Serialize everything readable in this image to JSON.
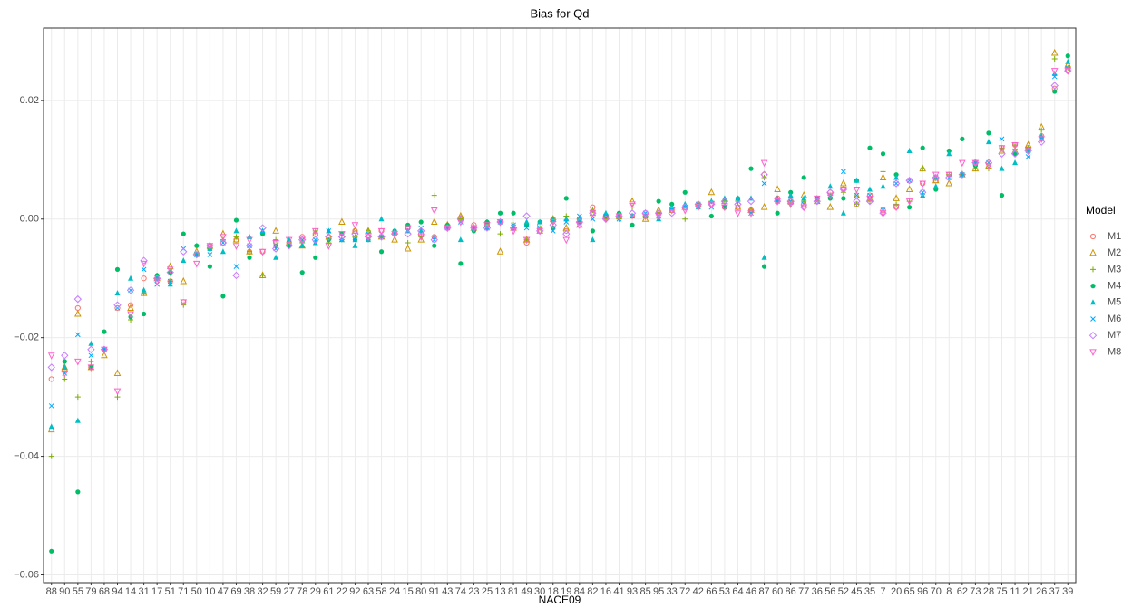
{
  "chart_data": {
    "type": "scatter",
    "title": "Bias for Qd",
    "x_label": "NACE09",
    "legend_title": "Model",
    "legend_position": "right",
    "grid": true,
    "categories": [
      "88",
      "90",
      "55",
      "79",
      "68",
      "94",
      "14",
      "31",
      "17",
      "51",
      "71",
      "50",
      "10",
      "47",
      "69",
      "38",
      "32",
      "59",
      "27",
      "78",
      "29",
      "61",
      "22",
      "92",
      "63",
      "58",
      "24",
      "15",
      "80",
      "91",
      "43",
      "74",
      "23",
      "25",
      "13",
      "81",
      "49",
      "30",
      "18",
      "19",
      "84",
      "82",
      "16",
      "41",
      "93",
      "85",
      "95",
      "33",
      "72",
      "42",
      "66",
      "53",
      "64",
      "46",
      "87",
      "60",
      "86",
      "77",
      "36",
      "56",
      "52",
      "45",
      "35",
      "7",
      "20",
      "65",
      "96",
      "70",
      "8",
      "62",
      "73",
      "28",
      "75",
      "11",
      "21",
      "26",
      "37",
      "39"
    ],
    "ylim": [
      -0.0613,
      0.0322
    ],
    "yticks": [
      {
        "value": -0.06,
        "label": "−0.06"
      },
      {
        "value": -0.04,
        "label": "−0.04"
      },
      {
        "value": -0.02,
        "label": "−0.02"
      },
      {
        "value": 0,
        "label": "0.00"
      },
      {
        "value": 0.02,
        "label": "0.02"
      }
    ],
    "series": [
      {
        "name": "M1",
        "color": "#F8766D",
        "shape": "circle-open",
        "values": [
          -0.027,
          -0.0255,
          -0.015,
          -0.025,
          -0.022,
          -0.015,
          -0.0145,
          -0.01,
          -0.01,
          -0.0105,
          -0.014,
          -0.006,
          -0.005,
          -0.004,
          -0.0035,
          -0.0055,
          -0.0055,
          -0.004,
          -0.004,
          -0.003,
          -0.0025,
          -0.003,
          -0.003,
          -0.002,
          -0.003,
          -0.002,
          -0.0025,
          -0.0015,
          -0.0025,
          -0.003,
          -0.0015,
          0.0002,
          -0.001,
          -0.001,
          -0.0005,
          -0.0015,
          -0.004,
          -0.001,
          0,
          -0.002,
          0,
          0.002,
          0.0005,
          0.0005,
          0.0005,
          0.001,
          0.001,
          0.0015,
          0.002,
          0.0025,
          0.0025,
          0.002,
          0.002,
          0.0015,
          0.0075,
          0.0035,
          0.003,
          0.0025,
          0.0035,
          0.0045,
          0.005,
          0.0025,
          0.004,
          0.0015,
          0.002,
          0.0065,
          0.006,
          0.0065,
          0.0075,
          0.0075,
          0.0095,
          0.0095,
          0.012,
          0.0125,
          0.012,
          0.014,
          0.022,
          0.025
        ]
      },
      {
        "name": "M2",
        "color": "#CD9600",
        "shape": "triangle-open",
        "values": [
          -0.0355,
          -0.025,
          -0.016,
          -0.025,
          -0.023,
          -0.026,
          -0.015,
          -0.0125,
          -0.01,
          -0.008,
          -0.0105,
          -0.0055,
          -0.0045,
          -0.0025,
          -0.0035,
          -0.0055,
          -0.0095,
          -0.002,
          -0.004,
          -0.0045,
          -0.0025,
          -0.003,
          -0.0005,
          -0.002,
          -0.002,
          -0.003,
          -0.0035,
          -0.005,
          -0.0035,
          -0.0005,
          -0.001,
          0.0005,
          -0.0015,
          -0.001,
          -0.0055,
          -0.0015,
          -0.0035,
          -0.002,
          0,
          -0.0015,
          -0.001,
          0.001,
          0.0005,
          0.0005,
          0.003,
          0,
          0.0015,
          0.0015,
          0.002,
          0.0025,
          0.0045,
          0.003,
          0.002,
          0.0015,
          0.002,
          0.005,
          0.003,
          0.004,
          0.003,
          0.002,
          0.006,
          0.004,
          0.0035,
          0.007,
          0.0035,
          0.005,
          0.0085,
          0.0065,
          0.006,
          0.0075,
          0.0085,
          0.009,
          0.0115,
          0.0115,
          0.0125,
          0.0155,
          0.028,
          0.026
        ]
      },
      {
        "name": "M3",
        "color": "#7CAE00",
        "shape": "plus",
        "values": [
          -0.04,
          -0.027,
          -0.03,
          -0.024,
          -0.022,
          -0.03,
          -0.017,
          -0.0125,
          -0.0095,
          -0.0105,
          -0.0145,
          -0.0045,
          -0.005,
          -0.0035,
          -0.003,
          -0.0055,
          -0.0095,
          -0.0035,
          -0.0045,
          -0.004,
          -0.002,
          -0.004,
          -0.0035,
          -0.003,
          -0.002,
          -0.003,
          -0.0025,
          -0.004,
          -0.003,
          0.004,
          -0.001,
          0,
          -0.0015,
          -0.0005,
          -0.0025,
          -0.001,
          -0.0035,
          -0.0015,
          -0.0005,
          0.0005,
          0,
          0.0015,
          0,
          0,
          0.002,
          0.0005,
          0.001,
          0.002,
          0,
          0.002,
          0.003,
          0.003,
          0.003,
          0.0015,
          0.007,
          0.003,
          0.0025,
          0.003,
          0.0035,
          0.004,
          0.0045,
          0.0025,
          0.003,
          0.008,
          0.0025,
          0.003,
          0.0085,
          0.007,
          0.0075,
          0.0075,
          0.0085,
          0.0085,
          0.012,
          0.0125,
          0.012,
          0.015,
          0.027,
          0.0255
        ]
      },
      {
        "name": "M4",
        "color": "#00BE67",
        "shape": "circle",
        "values": [
          -0.056,
          -0.024,
          -0.046,
          -0.025,
          -0.019,
          -0.0085,
          -0.0165,
          -0.016,
          -0.0095,
          -0.009,
          -0.0025,
          -0.0045,
          -0.008,
          -0.013,
          -0.0002,
          -0.0065,
          -0.0025,
          -0.0045,
          -0.0045,
          -0.009,
          -0.0065,
          -0.0035,
          -0.0025,
          -0.0035,
          -0.0035,
          -0.0055,
          -0.002,
          -0.001,
          -0.0005,
          -0.0045,
          -0.001,
          -0.0075,
          -0.002,
          -0.0005,
          0.001,
          0.001,
          -0.001,
          -0.0005,
          -0.0015,
          0.0035,
          -0.0005,
          -0.002,
          0.0005,
          0.001,
          -0.001,
          0.0005,
          0.003,
          0.0025,
          0.0045,
          0.002,
          0.0005,
          0.002,
          0.0035,
          0.0085,
          -0.008,
          0.001,
          0.0045,
          0.007,
          0.0035,
          0.0035,
          0.0035,
          0.0065,
          0.012,
          0.011,
          0.0075,
          0.002,
          0.012,
          0.005,
          0.0115,
          0.0135,
          0.009,
          0.0145,
          0.004,
          0.011,
          0.0115,
          0.0135,
          0.0215,
          0.0275
        ]
      },
      {
        "name": "M5",
        "color": "#00BFC4",
        "shape": "triangle",
        "values": [
          -0.035,
          -0.025,
          -0.034,
          -0.021,
          -0.022,
          -0.0125,
          -0.01,
          -0.012,
          -0.01,
          -0.011,
          -0.007,
          -0.006,
          -0.005,
          -0.0055,
          -0.002,
          -0.003,
          -0.002,
          -0.0065,
          -0.0035,
          -0.0045,
          -0.004,
          -0.002,
          -0.0035,
          -0.0045,
          -0.0035,
          0,
          -0.002,
          -0.002,
          -0.002,
          -0.003,
          -0.0015,
          -0.0035,
          -0.0015,
          -0.0015,
          -0.0005,
          -0.0015,
          -0.0005,
          -0.0005,
          0,
          0,
          0,
          -0.0035,
          0.001,
          0.0005,
          0.0005,
          0.0005,
          0,
          0.002,
          0.0025,
          0.002,
          0.003,
          0.0035,
          0.0035,
          0.0035,
          -0.0065,
          0.0035,
          0.004,
          0.0035,
          0.0035,
          0.0055,
          0.001,
          0.0065,
          0.005,
          0.0055,
          0.007,
          0.0115,
          0.004,
          0.0055,
          0.011,
          0.0075,
          0.0095,
          0.013,
          0.0085,
          0.0095,
          0.0115,
          0.014,
          0.0245,
          0.0265
        ]
      },
      {
        "name": "M6",
        "color": "#00A9FF",
        "shape": "cross",
        "values": [
          -0.0315,
          -0.026,
          -0.0195,
          -0.023,
          -0.022,
          -0.015,
          -0.012,
          -0.0085,
          -0.011,
          -0.0105,
          -0.005,
          -0.006,
          -0.006,
          -0.004,
          -0.008,
          -0.0045,
          -0.002,
          -0.005,
          -0.004,
          -0.0035,
          -0.0035,
          -0.002,
          -0.0035,
          -0.0035,
          -0.0025,
          -0.003,
          -0.0025,
          -0.002,
          -0.0015,
          -0.0035,
          -0.0015,
          -0.0005,
          -0.0015,
          -0.0015,
          -0.0005,
          -0.001,
          -0.0015,
          -0.0015,
          -0.002,
          -0.0005,
          0.0005,
          0,
          0.0005,
          0,
          0.0005,
          0.001,
          0.0005,
          0.0015,
          0.002,
          0.0025,
          0.002,
          0.0025,
          0.003,
          0.001,
          0.006,
          0.003,
          0.003,
          0.0025,
          0.003,
          0.004,
          0.008,
          0.004,
          0.004,
          0.0015,
          0.006,
          0.0065,
          0.0045,
          0.007,
          0.007,
          0.0075,
          0.0095,
          0.0095,
          0.0135,
          0.0115,
          0.0105,
          0.0135,
          0.024,
          0.0255
        ]
      },
      {
        "name": "M7",
        "color": "#C77CFF",
        "shape": "diamond-open",
        "values": [
          -0.025,
          -0.023,
          -0.0135,
          -0.022,
          -0.022,
          -0.0145,
          -0.012,
          -0.007,
          -0.01,
          -0.009,
          -0.0055,
          -0.006,
          -0.0045,
          -0.004,
          -0.0095,
          -0.0045,
          -0.0015,
          -0.005,
          -0.0045,
          -0.0035,
          -0.0035,
          -0.003,
          -0.003,
          -0.0025,
          -0.003,
          -0.003,
          -0.0025,
          -0.0025,
          -0.002,
          -0.0035,
          -0.0015,
          0,
          -0.0015,
          -0.0015,
          -0.0005,
          -0.0015,
          0.0005,
          -0.002,
          -0.001,
          -0.0025,
          -0.0005,
          0.001,
          0,
          0.0005,
          0.001,
          0.001,
          0.001,
          0.001,
          0.002,
          0.0025,
          0.0025,
          0.003,
          0.0025,
          0.003,
          0.0075,
          0.003,
          0.003,
          0.002,
          0.003,
          0.0045,
          0.005,
          0.003,
          0.003,
          0.001,
          0.006,
          0.0065,
          0.0045,
          0.007,
          0.007,
          0.0075,
          0.0095,
          0.0095,
          0.011,
          0.011,
          0.0115,
          0.013,
          0.0225,
          0.025
        ]
      },
      {
        "name": "M8",
        "color": "#FF61CC",
        "shape": "triangle-down-open",
        "values": [
          -0.023,
          -0.026,
          -0.024,
          -0.025,
          -0.022,
          -0.029,
          -0.016,
          -0.0075,
          -0.0105,
          -0.0085,
          -0.014,
          -0.0075,
          -0.0045,
          -0.003,
          -0.0045,
          -0.0035,
          -0.0055,
          -0.004,
          -0.0035,
          -0.0035,
          -0.002,
          -0.0045,
          -0.0025,
          -0.001,
          -0.003,
          -0.002,
          -0.0025,
          -0.0015,
          -0.003,
          0.0015,
          -0.0015,
          -0.0005,
          -0.0015,
          -0.001,
          -0.0005,
          -0.002,
          -0.0035,
          -0.002,
          -0.0005,
          -0.0035,
          -0.001,
          0.001,
          0,
          0.0005,
          0.0025,
          0.0005,
          0.0005,
          0.0015,
          0.0015,
          0.002,
          0.0025,
          0.002,
          0.001,
          0.001,
          0.0095,
          0.003,
          0.0025,
          0.002,
          0.0035,
          0.004,
          0.005,
          0.005,
          0.0035,
          0.001,
          0.002,
          0.003,
          0.006,
          0.0075,
          0.0075,
          0.0095,
          0.0095,
          0.009,
          0.012,
          0.0125,
          0.0115,
          0.0135,
          0.025,
          0.025
        ]
      }
    ]
  }
}
